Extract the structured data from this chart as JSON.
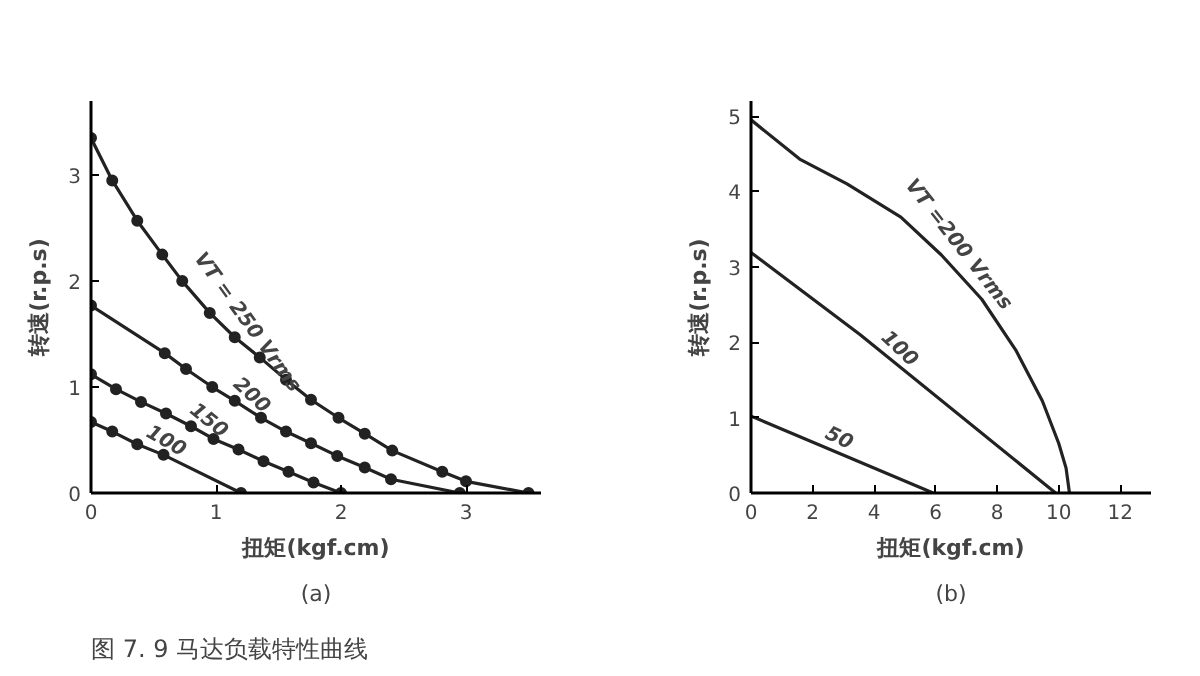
{
  "chart_data": [
    {
      "type": "line",
      "title": "(a)",
      "xlabel": "扭矩(kgf.cm)",
      "ylabel": "转速(r.p.s)",
      "xlim": [
        0,
        3.6
      ],
      "ylim": [
        0,
        3.7
      ],
      "xticks": [
        0,
        1,
        2,
        3
      ],
      "yticks": [
        0,
        1,
        2,
        3
      ],
      "grid": false,
      "marker": "circle",
      "line_style": "solid",
      "series": [
        {
          "name": "VT = 250 Vrms",
          "color": "#222222",
          "x": [
            0,
            0.17,
            0.37,
            0.57,
            0.73,
            0.95,
            1.15,
            1.35,
            1.56,
            1.76,
            1.98,
            2.19,
            2.41,
            2.81,
            3.0,
            3.5
          ],
          "values": [
            3.35,
            2.95,
            2.57,
            2.25,
            2.0,
            1.7,
            1.47,
            1.28,
            1.07,
            0.88,
            0.71,
            0.56,
            0.4,
            0.2,
            0.11,
            0
          ]
        },
        {
          "name": "200",
          "color": "#222222",
          "x": [
            0,
            0.59,
            0.76,
            0.97,
            1.15,
            1.36,
            1.56,
            1.76,
            1.97,
            2.19,
            2.4,
            2.95
          ],
          "values": [
            1.77,
            1.32,
            1.17,
            1.0,
            0.87,
            0.71,
            0.58,
            0.47,
            0.35,
            0.24,
            0.13,
            0
          ]
        },
        {
          "name": "150",
          "color": "#222222",
          "x": [
            0,
            0.2,
            0.4,
            0.6,
            0.8,
            0.98,
            1.18,
            1.38,
            1.58,
            1.78,
            2.0
          ],
          "values": [
            1.12,
            0.98,
            0.86,
            0.75,
            0.63,
            0.51,
            0.41,
            0.3,
            0.2,
            0.1,
            0
          ]
        },
        {
          "name": "100",
          "color": "#222222",
          "x": [
            0,
            0.17,
            0.37,
            0.58,
            1.2
          ],
          "values": [
            0.67,
            0.58,
            0.46,
            0.36,
            0
          ]
        }
      ],
      "annotations": [
        "图 7. 9 马达负载特性曲线"
      ]
    },
    {
      "type": "line",
      "title": "(b)",
      "xlabel": "扭矩(kgf.cm)",
      "ylabel": "转速(r.p.s)",
      "xlim": [
        0,
        13
      ],
      "ylim": [
        0,
        5.2
      ],
      "xticks": [
        0,
        2,
        4,
        6,
        8,
        10,
        12
      ],
      "yticks": [
        0,
        1,
        2,
        3,
        4,
        5
      ],
      "grid": false,
      "line_style": "solid",
      "series": [
        {
          "name": "VT =200 Vrms",
          "color": "#222222",
          "x": [
            0,
            1.58,
            3.12,
            4.87,
            6.18,
            7.5,
            8.6,
            9.47,
            10.0,
            10.24,
            10.35
          ],
          "values": [
            4.95,
            4.43,
            4.1,
            3.66,
            3.16,
            2.57,
            1.9,
            1.22,
            0.66,
            0.33,
            0
          ]
        },
        {
          "name": "100",
          "color": "#222222",
          "x": [
            0,
            3.55,
            9.9
          ],
          "values": [
            3.19,
            2.1,
            0
          ]
        },
        {
          "name": "50",
          "color": "#222222",
          "x": [
            0,
            5.92
          ],
          "values": [
            1.02,
            0
          ]
        }
      ]
    }
  ]
}
